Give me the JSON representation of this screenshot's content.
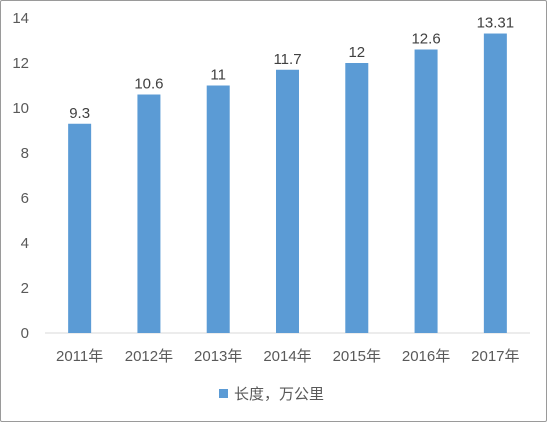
{
  "chart_data": {
    "type": "bar",
    "categories": [
      "2011年",
      "2012年",
      "2013年",
      "2014年",
      "2015年",
      "2016年",
      "2017年"
    ],
    "series": [
      {
        "name": "长度，万公里",
        "values": [
          9.3,
          10.6,
          11,
          11.7,
          12,
          12.6,
          13.31
        ],
        "labels": [
          "9.3",
          "10.6",
          "11",
          "11.7",
          "12",
          "12.6",
          "13.31"
        ],
        "color": "#5b9bd5"
      }
    ],
    "ylim": [
      0,
      14
    ],
    "yticks": [
      "0",
      "2",
      "4",
      "6",
      "8",
      "10",
      "12",
      "14"
    ],
    "grid": false,
    "legend": "bottom"
  }
}
